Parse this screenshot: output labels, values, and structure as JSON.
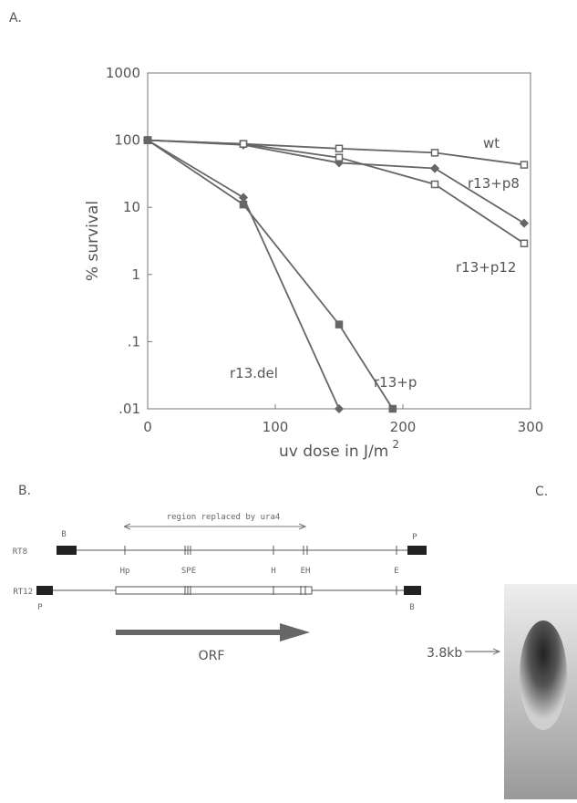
{
  "panel_a_label": "A.",
  "chart_data": {
    "type": "line",
    "ylabel": "% survival",
    "xlabel": "uv dose in J/m",
    "xlabel_superscript": "2",
    "xlim": [
      0,
      300
    ],
    "xticks": [
      0,
      100,
      200,
      300
    ],
    "ylim": [
      0.01,
      1000
    ],
    "yscale": "log",
    "yticks": [
      1000,
      100,
      10,
      1,
      {
        "value": 0.1,
        "label": ".1"
      },
      {
        "value": 0.01,
        "label": ".01"
      }
    ],
    "series": [
      {
        "name": "wt",
        "color": "#666666",
        "marker": "open-square",
        "x": [
          0,
          75,
          150,
          225,
          295
        ],
        "values": [
          100,
          88,
          75,
          65,
          43
        ]
      },
      {
        "name": "r13+p8",
        "color": "#666666",
        "marker": "diamond",
        "x": [
          0,
          75,
          150,
          225,
          295
        ],
        "values": [
          100,
          85,
          46,
          38,
          5.8
        ]
      },
      {
        "name": "r13+p12",
        "color": "#666666",
        "marker": "open-square",
        "x": [
          0,
          75,
          150,
          225,
          295
        ],
        "values": [
          100,
          88,
          55,
          22,
          2.9
        ]
      },
      {
        "name": "r13.del",
        "color": "#666666",
        "marker": "diamond",
        "x": [
          0,
          75,
          150
        ],
        "values": [
          100,
          14,
          0.01
        ]
      },
      {
        "name": "r13+p",
        "color": "#666666",
        "marker": "square",
        "x": [
          0,
          75,
          150,
          192
        ],
        "values": [
          100,
          11,
          0.18,
          0.01
        ]
      }
    ]
  },
  "panel_b": {
    "label": "B.",
    "region": "region replaced by ura4",
    "rt8": "RT8",
    "rt12": "RT12",
    "sites_top": [
      "B",
      "P"
    ],
    "sites_mid": [
      "Hp",
      "SPE",
      "H",
      "EH",
      "E"
    ],
    "sites_bottom": [
      "P",
      "B"
    ],
    "orf": "ORF"
  },
  "panel_c": {
    "label": "C.",
    "band": "3.8kb"
  }
}
